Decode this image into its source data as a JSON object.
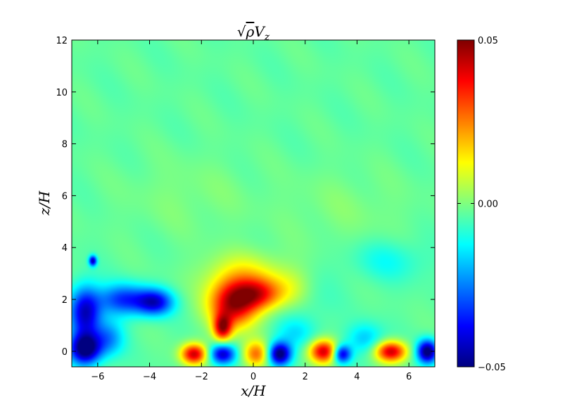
{
  "chart_data": {
    "type": "heatmap",
    "title": "√ρV_z",
    "title_parts": {
      "pre": "√",
      "var": "ρ",
      "main": "V",
      "sub": "z"
    },
    "xlabel": "x/H",
    "ylabel": "z/H",
    "xlim": [
      -7.0,
      7.0
    ],
    "ylim": [
      -0.6,
      12.0
    ],
    "xticks": [
      -6,
      -4,
      -2,
      0,
      2,
      4,
      6
    ],
    "xtick_labels": [
      "−6",
      "−4",
      "−2",
      "0",
      "2",
      "4",
      "6"
    ],
    "yticks": [
      0,
      2,
      4,
      6,
      8,
      10,
      12
    ],
    "ytick_labels": [
      "0",
      "2",
      "4",
      "6",
      "8",
      "10",
      "12"
    ],
    "colormap": "jet",
    "background_value": -0.003,
    "colorbar": {
      "range": [
        -0.05,
        0.05
      ],
      "ticks": [
        -0.05,
        0.0,
        0.05
      ],
      "tick_labels": [
        "−0.05",
        "0.00",
        "0.05"
      ],
      "colors": [
        "#00007f",
        "#0000ff",
        "#007fff",
        "#00ffff",
        "#7fff7f",
        "#ffff00",
        "#ff7f00",
        "#ff0000",
        "#7f0000"
      ]
    },
    "features": [
      {
        "x": -0.8,
        "z": 1.8,
        "value": 0.045,
        "rx": 0.9,
        "rz": 0.9
      },
      {
        "x": 0.2,
        "z": 2.2,
        "value": 0.03,
        "rx": 0.9,
        "rz": 0.6
      },
      {
        "x": -0.3,
        "z": 2.9,
        "value": 0.015,
        "rx": 1.6,
        "rz": 0.9
      },
      {
        "x": -5.0,
        "z": 2.0,
        "value": -0.03,
        "rx": 1.0,
        "rz": 0.6
      },
      {
        "x": -3.8,
        "z": 1.9,
        "value": -0.035,
        "rx": 0.7,
        "rz": 0.5
      },
      {
        "x": -6.5,
        "z": 1.5,
        "value": -0.04,
        "rx": 0.6,
        "rz": 1.0
      },
      {
        "x": -6.5,
        "z": 0.1,
        "value": -0.05,
        "rx": 0.6,
        "rz": 0.6
      },
      {
        "x": -5.6,
        "z": 0.5,
        "value": -0.02,
        "rx": 0.6,
        "rz": 0.7
      },
      {
        "x": -6.2,
        "z": 3.5,
        "value": -0.04,
        "rx": 0.15,
        "rz": 0.2
      },
      {
        "x": -2.3,
        "z": -0.1,
        "value": 0.045,
        "rx": 0.5,
        "rz": 0.4
      },
      {
        "x": -1.2,
        "z": -0.1,
        "value": -0.04,
        "rx": 0.5,
        "rz": 0.4
      },
      {
        "x": 0.1,
        "z": -0.1,
        "value": 0.03,
        "rx": 0.5,
        "rz": 0.5
      },
      {
        "x": 1.0,
        "z": -0.1,
        "value": -0.05,
        "rx": 0.45,
        "rz": 0.45
      },
      {
        "x": 2.7,
        "z": 0.0,
        "value": 0.045,
        "rx": 0.55,
        "rz": 0.45
      },
      {
        "x": 3.4,
        "z": -0.1,
        "value": -0.04,
        "rx": 0.35,
        "rz": 0.35
      },
      {
        "x": 5.3,
        "z": 0.0,
        "value": 0.045,
        "rx": 0.6,
        "rz": 0.4
      },
      {
        "x": 6.7,
        "z": 0.0,
        "value": -0.05,
        "rx": 0.4,
        "rz": 0.45
      },
      {
        "x": 4.3,
        "z": 0.5,
        "value": -0.015,
        "rx": 0.7,
        "rz": 0.6
      },
      {
        "x": 1.6,
        "z": 0.7,
        "value": -0.01,
        "rx": 0.8,
        "rz": 0.6
      },
      {
        "x": -1.2,
        "z": 0.9,
        "value": 0.04,
        "rx": 0.35,
        "rz": 0.5
      },
      {
        "x": 1.5,
        "z": 2.4,
        "value": 0.01,
        "rx": 0.8,
        "rz": 0.8
      },
      {
        "x": 5.2,
        "z": 3.5,
        "value": -0.008,
        "rx": 1.5,
        "rz": 0.8
      },
      {
        "x": 3.5,
        "z": 5.5,
        "value": 0.003,
        "rx": 2.5,
        "rz": 1.5
      },
      {
        "x": -2.5,
        "z": 6.0,
        "value": 0.003,
        "rx": 2.5,
        "rz": 1.5
      },
      {
        "x": 2.0,
        "z": 2.0,
        "value": -0.005,
        "rx": 1.0,
        "rz": 1.2
      }
    ]
  }
}
